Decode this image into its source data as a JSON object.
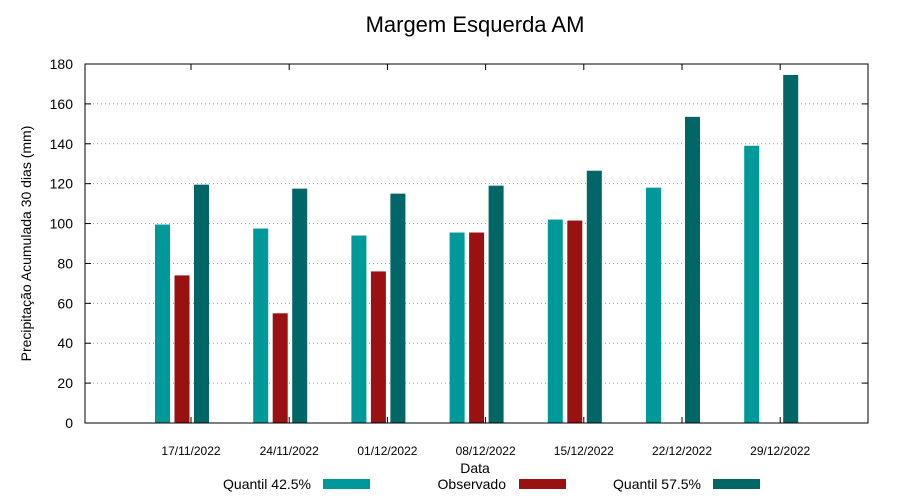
{
  "chart_data": {
    "type": "bar",
    "title": "Margem Esquerda AM",
    "xlabel": "Data",
    "ylabel": "Precipitação Acumulada 30 dias (mm)",
    "ylim": [
      0,
      180
    ],
    "yticks": [
      0,
      20,
      40,
      60,
      80,
      100,
      120,
      140,
      160,
      180
    ],
    "grid": true,
    "legend_position": "bottom",
    "categories": [
      "17/11/2022",
      "24/11/2022",
      "01/12/2022",
      "08/12/2022",
      "15/12/2022",
      "22/12/2022",
      "29/12/2022"
    ],
    "series": [
      {
        "name": "Quantil 42.5%",
        "color": "#009999",
        "values": [
          99.5,
          97.5,
          94,
          95.5,
          102,
          118,
          139
        ]
      },
      {
        "name": "Observado",
        "color": "#991111",
        "values": [
          74,
          55,
          76,
          95.5,
          101.5,
          null,
          null
        ]
      },
      {
        "name": "Quantil 57.5%",
        "color": "#006666",
        "values": [
          119.5,
          117.5,
          115,
          119,
          126.5,
          153.5,
          174.5
        ]
      }
    ]
  }
}
